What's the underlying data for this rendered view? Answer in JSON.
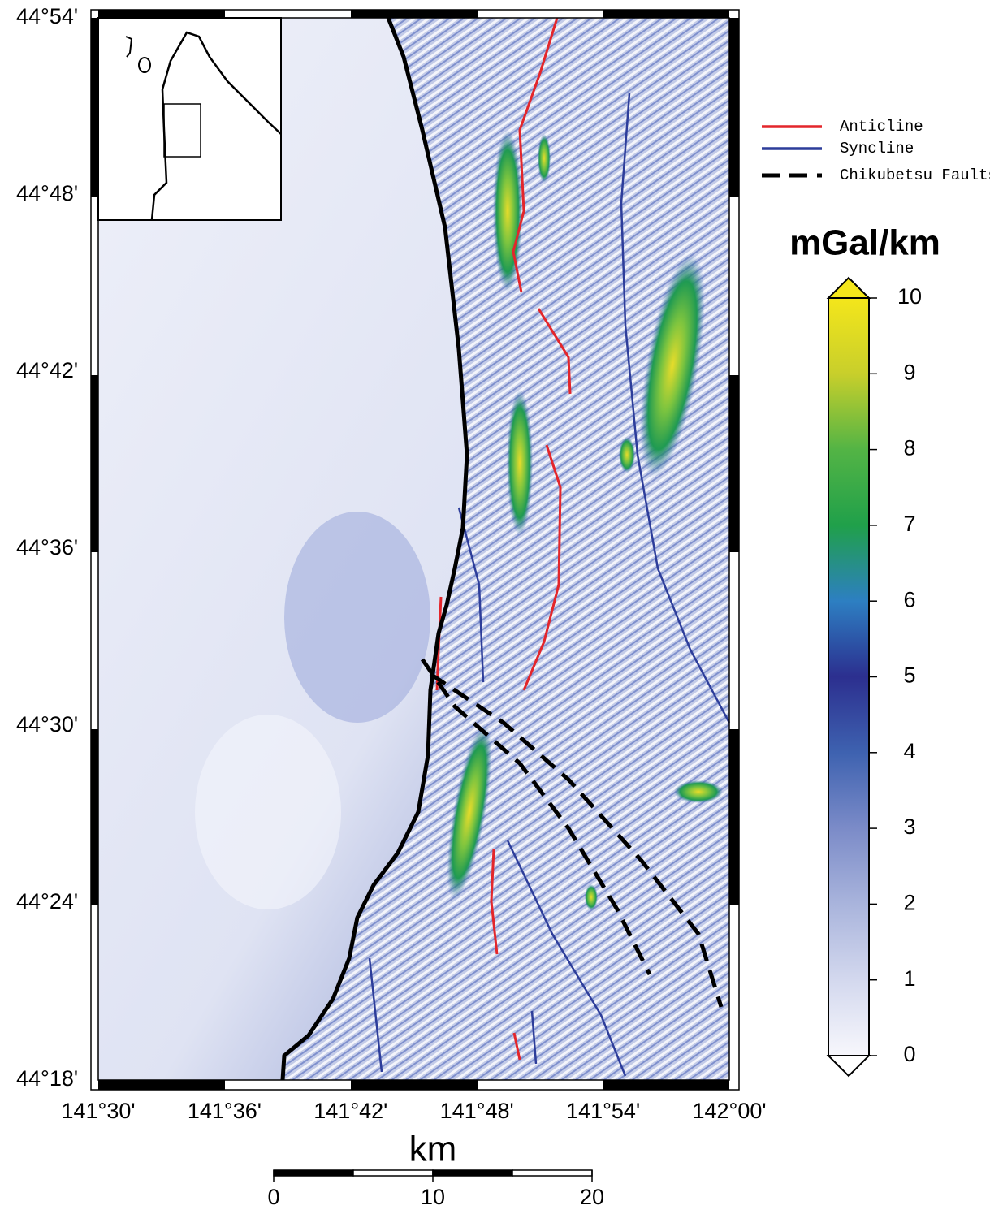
{
  "map": {
    "lat_ticks": [
      "44°54'",
      "44°48'",
      "44°42'",
      "44°36'",
      "44°30'",
      "44°24'",
      "44°18'"
    ],
    "lon_ticks": [
      "141°30'",
      "141°36'",
      "141°42'",
      "141°48'",
      "141°54'",
      "142°00'"
    ]
  },
  "legend": [
    {
      "name": "Anticline",
      "color": "#e3262b",
      "style": "solid"
    },
    {
      "name": "Syncline",
      "color": "#2d3d9a",
      "style": "solid"
    },
    {
      "name": "Chikubetsu Faults",
      "color": "#000000",
      "style": "dashed"
    }
  ],
  "colorbar": {
    "title": "mGal/km",
    "range": [
      0,
      10
    ],
    "ticks": [
      0,
      1,
      2,
      3,
      4,
      5,
      6,
      7,
      8,
      9,
      10
    ],
    "colors": [
      "#f7f7fc",
      "#d3d8ee",
      "#a9b4dc",
      "#7b8bc8",
      "#3e62b0",
      "#2c2f8f",
      "#2d7fc2",
      "#20a04a",
      "#53b445",
      "#c8cf2b",
      "#f4e61b"
    ]
  },
  "scale_bar": {
    "title": "km",
    "ticks": [
      0,
      10,
      20
    ]
  }
}
